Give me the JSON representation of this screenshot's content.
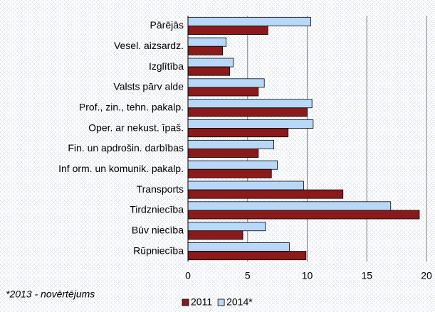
{
  "chart_data": {
    "type": "hbar",
    "categories": [
      "Pārējās",
      "Vesel. aizsardz.",
      "Izglītība",
      "Valsts pārv alde",
      "Prof., zin., tehn. pakalp.",
      "Oper. ar nekust. īpaš.",
      "Fin. un apdrošin. darbības",
      "Inf orm. un komunik. pakalp.",
      "Transports",
      "Tirdzniecība",
      "Būv niecība",
      "Rūpniecība"
    ],
    "series": [
      {
        "name": "2011",
        "color": "#8b1a1a",
        "values": [
          6.7,
          2.9,
          3.5,
          5.9,
          10.0,
          8.4,
          5.9,
          7.0,
          13.0,
          19.4,
          4.6,
          9.9
        ]
      },
      {
        "name": "2014*",
        "color": "#b8d8f8",
        "values": [
          10.3,
          3.2,
          3.8,
          6.4,
          10.4,
          10.5,
          7.2,
          7.5,
          9.7,
          17.0,
          6.5,
          8.5
        ]
      }
    ],
    "xlim": [
      0,
      20
    ],
    "xticks": [
      0,
      5,
      10,
      15,
      20
    ],
    "grid": true,
    "note": "*2013 - novērtējums"
  }
}
